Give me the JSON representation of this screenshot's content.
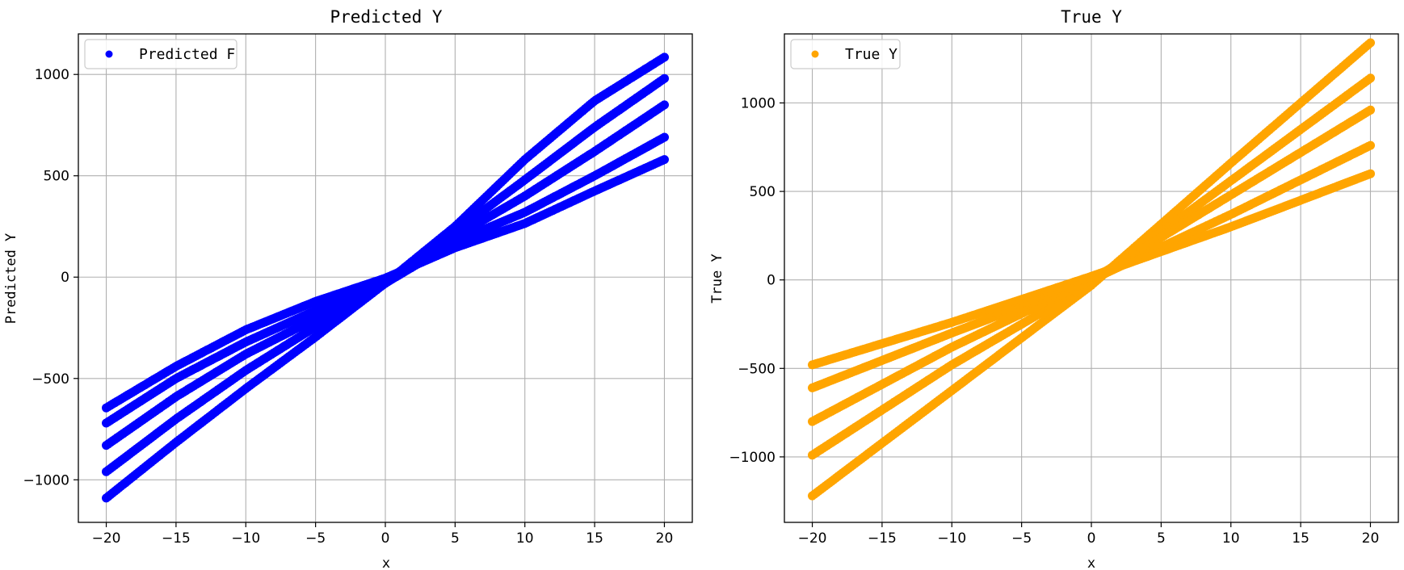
{
  "chart_data": [
    {
      "type": "scatter",
      "title": "Predicted Y",
      "xlabel": "x",
      "ylabel": "Predicted Y",
      "xlim": [
        -22,
        22
      ],
      "ylim": [
        -1210,
        1200
      ],
      "xticks": [
        -20,
        -15,
        -10,
        -5,
        0,
        5,
        10,
        15,
        20
      ],
      "yticks": [
        -1000,
        -500,
        0,
        500,
        1000
      ],
      "xtick_labels": [
        "−20",
        "−15",
        "−10",
        "−5",
        "0",
        "5",
        "10",
        "15",
        "20"
      ],
      "ytick_labels": [
        "−1000",
        "−500",
        "0",
        "500",
        "1000"
      ],
      "grid": true,
      "legend_position": "top-left",
      "color": "#0000ff",
      "series": [
        {
          "name": "Predicted F",
          "bands": [
            {
              "x": [
                -20,
                -15,
                -10,
                -5,
                0,
                5,
                10,
                15,
                20
              ],
              "y": [
                -1090,
                -815,
                -550,
                -295,
                -30,
                250,
                580,
                870,
                1085
              ]
            },
            {
              "x": [
                -20,
                -15,
                -10,
                -5,
                0,
                5,
                10,
                15,
                20
              ],
              "y": [
                -960,
                -700,
                -460,
                -245,
                -30,
                225,
                480,
                740,
                980
              ]
            },
            {
              "x": [
                -20,
                -15,
                -10,
                -5,
                0,
                5,
                10,
                15,
                20
              ],
              "y": [
                -830,
                -590,
                -380,
                -205,
                -30,
                200,
                400,
                620,
                850
              ]
            },
            {
              "x": [
                -20,
                -15,
                -10,
                -5,
                0,
                5,
                10,
                15,
                20
              ],
              "y": [
                -720,
                -500,
                -320,
                -165,
                -30,
                175,
                320,
                500,
                690
              ]
            },
            {
              "x": [
                -20,
                -15,
                -10,
                -5,
                0,
                5,
                10,
                15,
                20
              ],
              "y": [
                -645,
                -440,
                -260,
                -120,
                -5,
                145,
                265,
                425,
                580
              ]
            }
          ]
        }
      ]
    },
    {
      "type": "scatter",
      "title": "True Y",
      "xlabel": "x",
      "ylabel": "True Y",
      "xlim": [
        -22,
        22
      ],
      "ylim": [
        -1370,
        1390
      ],
      "xticks": [
        -20,
        -15,
        -10,
        -5,
        0,
        5,
        10,
        15,
        20
      ],
      "yticks": [
        -1000,
        -500,
        0,
        500,
        1000
      ],
      "xtick_labels": [
        "−20",
        "−15",
        "−10",
        "−5",
        "0",
        "5",
        "10",
        "15",
        "20"
      ],
      "ytick_labels": [
        "−1000",
        "−500",
        "0",
        "500",
        "1000"
      ],
      "grid": true,
      "legend_position": "top-left",
      "color": "#ffa500",
      "series": [
        {
          "name": "True Y",
          "bands": [
            {
              "x": [
                -20,
                -10,
                0,
                10,
                20
              ],
              "y": [
                -1220,
                -625,
                -30,
                660,
                1340
              ]
            },
            {
              "x": [
                -20,
                -10,
                0,
                10,
                20
              ],
              "y": [
                -990,
                -480,
                -20,
                560,
                1140
              ]
            },
            {
              "x": [
                -20,
                -10,
                0,
                10,
                20
              ],
              "y": [
                -800,
                -380,
                0,
                480,
                960
              ]
            },
            {
              "x": [
                -20,
                -10,
                0,
                10,
                20
              ],
              "y": [
                -610,
                -300,
                0,
                370,
                760
              ]
            },
            {
              "x": [
                -20,
                -10,
                0,
                10,
                20
              ],
              "y": [
                -480,
                -240,
                20,
                300,
                600
              ]
            }
          ]
        }
      ]
    }
  ]
}
